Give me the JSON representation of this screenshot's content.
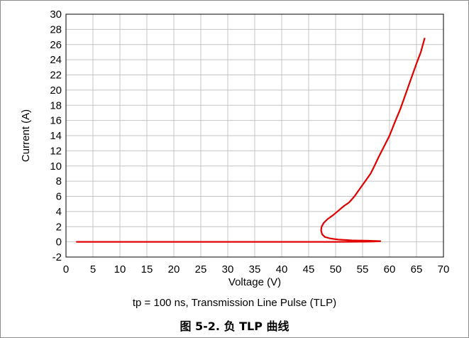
{
  "caption": "tp = 100 ns, Transmission Line Pulse (TLP)",
  "figure_title": "图 5-2. 负 TLP 曲线",
  "chart_data": {
    "type": "line",
    "title": "",
    "xlabel": "Voltage (V)",
    "ylabel": "Current (A)",
    "xlim": [
      0,
      70
    ],
    "ylim": [
      -2,
      30
    ],
    "xticks": [
      0,
      5,
      10,
      15,
      20,
      25,
      30,
      35,
      40,
      45,
      50,
      55,
      60,
      65,
      70
    ],
    "yticks": [
      -2,
      0,
      2,
      4,
      6,
      8,
      10,
      12,
      14,
      16,
      18,
      20,
      22,
      24,
      26,
      28,
      30
    ],
    "grid": true,
    "legend": "none",
    "series": [
      {
        "color": "#e00000",
        "x": [
          2.0,
          10.0,
          20.0,
          30.0,
          40.0,
          50.0,
          55.0,
          57.0,
          58.3,
          56.0,
          53.0,
          50.5,
          49.0,
          48.0,
          47.5,
          47.3,
          47.4,
          47.8,
          48.5,
          49.5,
          50.5,
          51.5,
          52.5,
          53.5,
          54.5,
          55.5,
          56.5,
          57.2,
          58.0,
          59.0,
          60.0,
          61.0,
          62.0,
          63.0,
          64.0,
          65.0,
          65.8,
          66.5
        ],
        "y": [
          0.0,
          0.0,
          0.0,
          0.0,
          0.0,
          0.0,
          0.02,
          0.05,
          0.1,
          0.15,
          0.2,
          0.3,
          0.45,
          0.65,
          1.0,
          1.5,
          2.0,
          2.5,
          3.0,
          3.5,
          4.1,
          4.7,
          5.2,
          6.0,
          7.0,
          8.0,
          9.0,
          10.0,
          11.2,
          12.6,
          14.0,
          15.8,
          17.5,
          19.5,
          21.5,
          23.5,
          25.0,
          26.8
        ]
      }
    ]
  }
}
